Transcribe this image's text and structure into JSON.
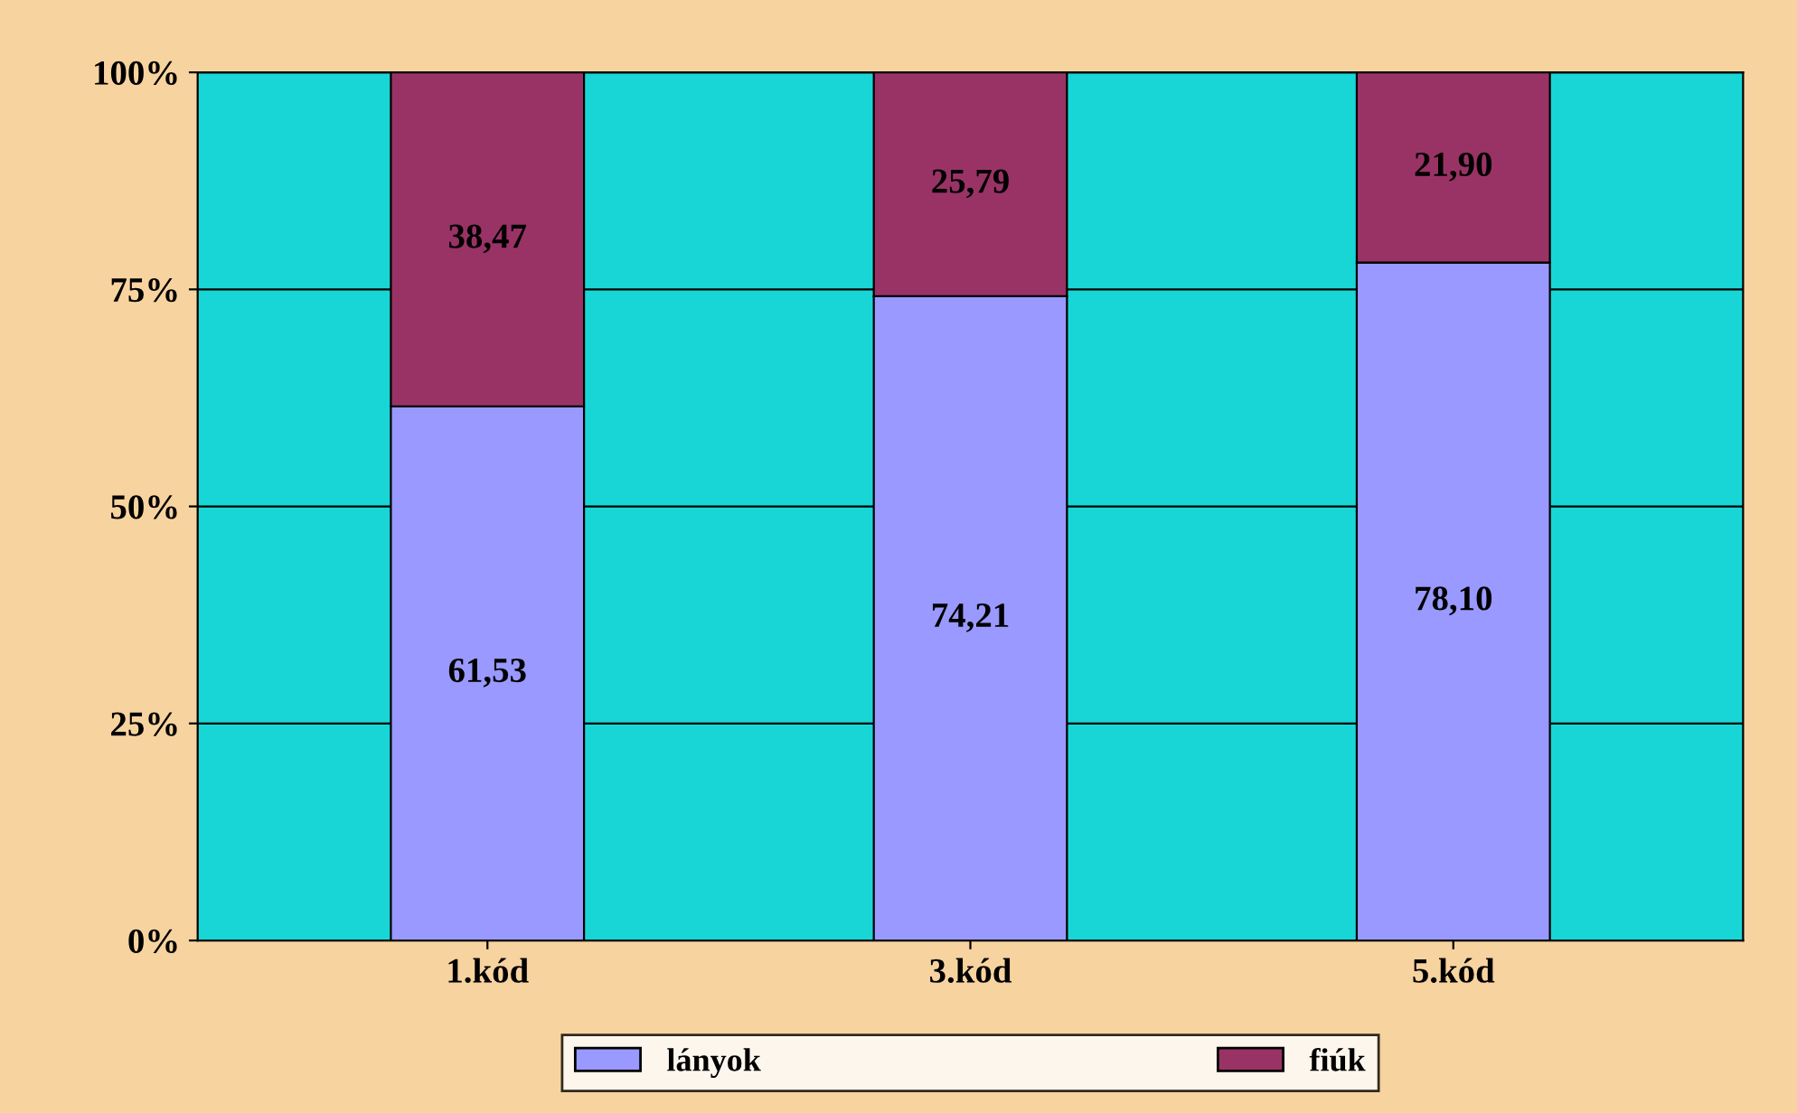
{
  "chart_data": {
    "type": "bar",
    "stacked": true,
    "categories": [
      "1.kód",
      "3.kód",
      "5.kód"
    ],
    "series": [
      {
        "name": "lányok",
        "color": "#9999ff",
        "values": [
          61.53,
          74.21,
          78.1
        ],
        "value_labels": [
          "61,53",
          "74,21",
          "78,10"
        ]
      },
      {
        "name": "fiúk",
        "color": "#993366",
        "values": [
          38.47,
          25.79,
          21.9
        ],
        "value_labels": [
          "38,47",
          "25,79",
          "21,90"
        ]
      }
    ],
    "ylim": [
      0,
      100
    ],
    "yticks": [
      {
        "value": 0,
        "label": "0%"
      },
      {
        "value": 25,
        "label": "25%"
      },
      {
        "value": 50,
        "label": "50%"
      },
      {
        "value": 75,
        "label": "75%"
      },
      {
        "value": 100,
        "label": "100%"
      }
    ],
    "grid": "y",
    "legend": "bottom"
  }
}
